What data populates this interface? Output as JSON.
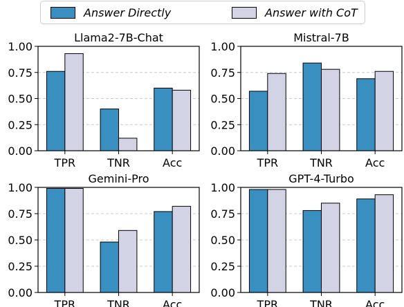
{
  "legend": {
    "items": [
      {
        "label": "Answer Directly",
        "color": "#3a8fc1"
      },
      {
        "label": "Answer with CoT",
        "color": "#d3d3e6"
      }
    ]
  },
  "chart_data": [
    {
      "type": "bar",
      "title": "Llama2-7B-Chat",
      "categories": [
        "TPR",
        "TNR",
        "Acc"
      ],
      "series": [
        {
          "name": "Answer Directly",
          "values": [
            0.76,
            0.4,
            0.6
          ]
        },
        {
          "name": "Answer with CoT",
          "values": [
            0.93,
            0.12,
            0.58
          ]
        }
      ],
      "ylim": [
        0,
        1.0
      ],
      "yticks": [
        "0.00",
        "0.25",
        "0.50",
        "0.75",
        "1.00"
      ],
      "grid": "y-dashed"
    },
    {
      "type": "bar",
      "title": "Mistral-7B",
      "categories": [
        "TPR",
        "TNR",
        "Acc"
      ],
      "series": [
        {
          "name": "Answer Directly",
          "values": [
            0.57,
            0.84,
            0.69
          ]
        },
        {
          "name": "Answer with CoT",
          "values": [
            0.74,
            0.78,
            0.76
          ]
        }
      ],
      "ylim": [
        0,
        1.0
      ],
      "yticks": [
        "0.00",
        "0.25",
        "0.50",
        "0.75",
        "1.00"
      ],
      "grid": "y-dashed"
    },
    {
      "type": "bar",
      "title": "Gemini-Pro",
      "categories": [
        "TPR",
        "TNR",
        "Acc"
      ],
      "series": [
        {
          "name": "Answer Directly",
          "values": [
            0.99,
            0.48,
            0.77
          ]
        },
        {
          "name": "Answer with CoT",
          "values": [
            0.99,
            0.59,
            0.82
          ]
        }
      ],
      "ylim": [
        0,
        1.0
      ],
      "yticks": [
        "0.00",
        "0.25",
        "0.50",
        "0.75",
        "1.00"
      ],
      "grid": "y-dashed"
    },
    {
      "type": "bar",
      "title": "GPT-4-Turbo",
      "categories": [
        "TPR",
        "TNR",
        "Acc"
      ],
      "series": [
        {
          "name": "Answer Directly",
          "values": [
            0.98,
            0.78,
            0.89
          ]
        },
        {
          "name": "Answer with CoT",
          "values": [
            0.98,
            0.85,
            0.93
          ]
        }
      ],
      "ylim": [
        0,
        1.0
      ],
      "yticks": [
        "0.00",
        "0.25",
        "0.50",
        "0.75",
        "1.00"
      ],
      "grid": "y-dashed"
    }
  ]
}
